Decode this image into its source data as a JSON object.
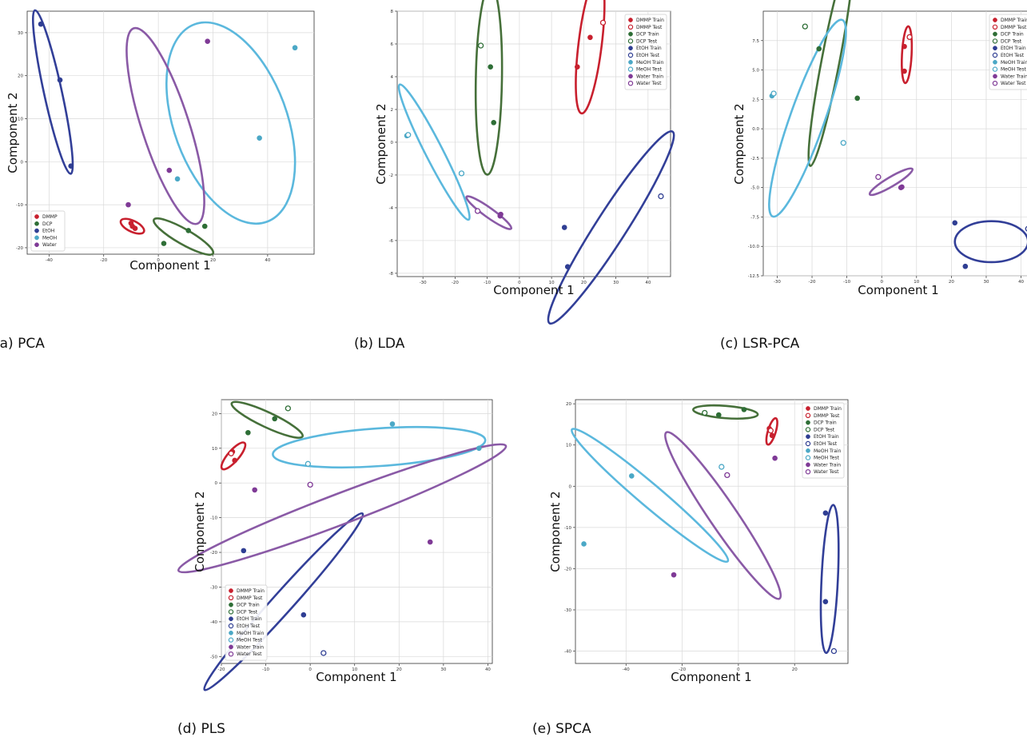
{
  "colors": {
    "DMMP": "#c8202e",
    "DCP": "#2e6e36",
    "EtOH": "#2f3e93",
    "MeOH": "#4ba8c6",
    "Water": "#7f3a96",
    "DMMP_ellipse": "#c8202e",
    "DCP_ellipse": "#46703a",
    "EtOH_ellipse": "#323f98",
    "MeOH_ellipse": "#5bb8dd",
    "Water_ellipse": "#8a5aa6"
  },
  "chart_data": [
    {
      "id": "pca",
      "type": "scatter",
      "caption": "(a) PCA",
      "xlabel": "Component 1",
      "ylabel": "Component 2",
      "xlim": [
        -48,
        57
      ],
      "ylim": [
        -21.5,
        35
      ],
      "xticks": [
        -40,
        -20,
        0,
        20,
        40
      ],
      "yticks": [
        -20,
        -10,
        0,
        10,
        20,
        30
      ],
      "grid": true,
      "legend": {
        "placement": "lower-left",
        "style": "filled",
        "entries": [
          "DMMP",
          "DCP",
          "EtOH",
          "MeOH",
          "Water"
        ]
      },
      "points": [
        {
          "cls": "DMMP",
          "x": -10,
          "y": -14.3,
          "t": "f"
        },
        {
          "cls": "DMMP",
          "x": -9.5,
          "y": -15,
          "t": "f"
        },
        {
          "cls": "DMMP",
          "x": -8.5,
          "y": -15.5,
          "t": "f"
        },
        {
          "cls": "DCP",
          "x": 2,
          "y": -19,
          "t": "f"
        },
        {
          "cls": "DCP",
          "x": 11,
          "y": -16,
          "t": "f"
        },
        {
          "cls": "DCP",
          "x": 17,
          "y": -15,
          "t": "f"
        },
        {
          "cls": "EtOH",
          "x": -43,
          "y": 32,
          "t": "f"
        },
        {
          "cls": "EtOH",
          "x": -36,
          "y": 19,
          "t": "f"
        },
        {
          "cls": "EtOH",
          "x": -32,
          "y": -1,
          "t": "f"
        },
        {
          "cls": "MeOH",
          "x": 50,
          "y": 26.5,
          "t": "f"
        },
        {
          "cls": "MeOH",
          "x": 37,
          "y": 5.5,
          "t": "f"
        },
        {
          "cls": "MeOH",
          "x": 7,
          "y": -4,
          "t": "f"
        },
        {
          "cls": "Water",
          "x": 18,
          "y": 28,
          "t": "f"
        },
        {
          "cls": "Water",
          "x": 4,
          "y": -2,
          "t": "f"
        },
        {
          "cls": "Water",
          "x": -11,
          "y": -10,
          "t": "f"
        }
      ],
      "ellipses": [
        {
          "cls": "DMMP",
          "cx": -9.5,
          "cy": -15,
          "rx": 4.4,
          "ry": 1.6,
          "rot": -17
        },
        {
          "cls": "DCP",
          "cx": 9.2,
          "cy": -17.4,
          "rx": 11.5,
          "ry": 2.2,
          "rot": -20
        },
        {
          "cls": "EtOH",
          "cx": -38.6,
          "cy": 16.2,
          "rx": 20.1,
          "ry": 2.6,
          "rot": -71
        },
        {
          "cls": "MeOH",
          "cx": 26.5,
          "cy": 9,
          "rx": 26.5,
          "ry": 16.5,
          "rot": -60
        },
        {
          "cls": "Water",
          "cx": 2.6,
          "cy": 8.3,
          "rx": 25.5,
          "ry": 6.9,
          "rot": -63
        }
      ]
    },
    {
      "id": "lda",
      "type": "scatter",
      "caption": "(b) LDA",
      "xlabel": "Component 1",
      "ylabel": "Component 2",
      "xlim": [
        -38,
        47
      ],
      "ylim": [
        -8.2,
        8
      ],
      "xticks": [
        -30,
        -20,
        -10,
        0,
        10,
        20,
        30,
        40
      ],
      "yticks": [
        -8,
        -6,
        -4,
        -2,
        0,
        2,
        4,
        6,
        8
      ],
      "grid": true,
      "legend": {
        "placement": "upper-right",
        "style": "train-test",
        "entries": [
          "DMMP Train",
          "DMMP Test",
          "DCP Train",
          "DCP Test",
          "EtOH Train",
          "EtOH Test",
          "MeOH Train",
          "MeOH Test",
          "Water Train",
          "Water Test"
        ]
      },
      "points": [
        {
          "cls": "DMMP",
          "x": 22,
          "y": 6.4,
          "t": "f"
        },
        {
          "cls": "DMMP",
          "x": 26,
          "y": 7.3,
          "t": "o"
        },
        {
          "cls": "DMMP",
          "x": 18,
          "y": 4.6,
          "t": "f"
        },
        {
          "cls": "DCP",
          "x": -12,
          "y": 5.9,
          "t": "o"
        },
        {
          "cls": "DCP",
          "x": -9,
          "y": 4.6,
          "t": "f"
        },
        {
          "cls": "DCP",
          "x": -8,
          "y": 1.2,
          "t": "f"
        },
        {
          "cls": "EtOH",
          "x": 44,
          "y": -3.3,
          "t": "o"
        },
        {
          "cls": "EtOH",
          "x": 14,
          "y": -5.2,
          "t": "f"
        },
        {
          "cls": "EtOH",
          "x": 15,
          "y": -7.6,
          "t": "f"
        },
        {
          "cls": "MeOH",
          "x": -35,
          "y": 0.4,
          "t": "f"
        },
        {
          "cls": "MeOH",
          "x": -34.6,
          "y": 0.45,
          "t": "o"
        },
        {
          "cls": "MeOH",
          "x": -18,
          "y": -1.9,
          "t": "o"
        },
        {
          "cls": "Water",
          "x": -13,
          "y": -4.2,
          "t": "o"
        },
        {
          "cls": "Water",
          "x": -6,
          "y": -4.5,
          "t": "f"
        },
        {
          "cls": "Water",
          "x": -5.8,
          "y": -4.4,
          "t": "f"
        }
      ],
      "ellipses": [
        {
          "cls": "DMMP",
          "cx": 22,
          "cy": 6.0,
          "rx": 5,
          "ry": 1.6,
          "rot": 58
        },
        {
          "cls": "DCP",
          "cx": -9.5,
          "cy": 3.8,
          "rx": 5.8,
          "ry": 1.8,
          "rot": 85
        },
        {
          "cls": "EtOH",
          "cx": 28.5,
          "cy": -5.2,
          "rx": 20,
          "ry": 2.1,
          "rot": 17
        },
        {
          "cls": "MeOH",
          "cx": -26.5,
          "cy": -0.6,
          "rx": 11.5,
          "ry": 1.2,
          "rot": -21
        },
        {
          "cls": "Water",
          "cx": -9.5,
          "cy": -4.3,
          "rx": 7.0,
          "ry": 0.65,
          "rot": -8
        }
      ]
    },
    {
      "id": "lsr-pca",
      "type": "scatter",
      "caption": "(c) LSR-PCA",
      "xlabel": "Component 1",
      "ylabel": "Component 2",
      "xlim": [
        -34,
        44
      ],
      "ylim": [
        -12.5,
        10
      ],
      "xticks": [
        -30,
        -20,
        -10,
        0,
        10,
        20,
        30,
        40
      ],
      "yticks": [
        -12.5,
        -10.0,
        -7.5,
        -5.0,
        -2.5,
        0.0,
        2.5,
        5.0,
        7.5
      ],
      "tick_decimals": 1,
      "grid": true,
      "legend": {
        "placement": "upper-right",
        "style": "train-test",
        "entries": [
          "DMMP Train",
          "DMMP Test",
          "DCP Train",
          "DCP Test",
          "EtOH Train",
          "EtOH Test",
          "MeOH Train",
          "MeOH Test",
          "Water Train",
          "Water Test"
        ]
      },
      "points": [
        {
          "cls": "DMMP",
          "x": 8,
          "y": 7.8,
          "t": "o"
        },
        {
          "cls": "DMMP",
          "x": 6.5,
          "y": 7.0,
          "t": "f"
        },
        {
          "cls": "DMMP",
          "x": 6.5,
          "y": 4.9,
          "t": "f"
        },
        {
          "cls": "DCP",
          "x": -22,
          "y": 8.7,
          "t": "o"
        },
        {
          "cls": "DCP",
          "x": -18,
          "y": 6.8,
          "t": "f"
        },
        {
          "cls": "DCP",
          "x": -7,
          "y": 2.6,
          "t": "f"
        },
        {
          "cls": "EtOH",
          "x": 42,
          "y": -8.5,
          "t": "o"
        },
        {
          "cls": "EtOH",
          "x": 21,
          "y": -8.0,
          "t": "f"
        },
        {
          "cls": "EtOH",
          "x": 24,
          "y": -11.7,
          "t": "f"
        },
        {
          "cls": "MeOH",
          "x": -31.5,
          "y": 2.8,
          "t": "f"
        },
        {
          "cls": "MeOH",
          "x": -31,
          "y": 3.0,
          "t": "o"
        },
        {
          "cls": "MeOH",
          "x": -11,
          "y": -1.2,
          "t": "o"
        },
        {
          "cls": "Water",
          "x": -1,
          "y": -4.1,
          "t": "o"
        },
        {
          "cls": "Water",
          "x": 5.5,
          "y": -5.0,
          "t": "f"
        },
        {
          "cls": "Water",
          "x": 5.8,
          "y": -4.95,
          "t": "f"
        }
      ],
      "ellipses": [
        {
          "cls": "DMMP",
          "cx": 7.2,
          "cy": 6.3,
          "rx": 2.45,
          "ry": 0.75,
          "rot": 80
        },
        {
          "cls": "DCP",
          "cx": -14.6,
          "cy": 5.9,
          "rx": 10.8,
          "ry": 1.4,
          "rot": 57
        },
        {
          "cls": "EtOH",
          "cx": 31.5,
          "cy": -9.6,
          "rx": 10.5,
          "ry": 3.2,
          "rot": 0
        },
        {
          "cls": "MeOH",
          "cx": -21.3,
          "cy": 0.9,
          "rx": 13,
          "ry": 2.7,
          "rot": 40
        },
        {
          "cls": "Water",
          "cx": 2.7,
          "cy": -4.5,
          "rx": 6.2,
          "ry": 0.72,
          "rot": 10
        }
      ]
    },
    {
      "id": "pls",
      "type": "scatter",
      "caption": "(d) PLS",
      "xlabel": "Component 1",
      "ylabel": "Component 2",
      "xlim": [
        -20,
        41
      ],
      "ylim": [
        -52,
        24
      ],
      "xticks": [
        -20,
        -10,
        0,
        10,
        20,
        30,
        40
      ],
      "yticks": [
        -50,
        -40,
        -30,
        -20,
        -10,
        0,
        10,
        20
      ],
      "grid": true,
      "legend": {
        "placement": "lower-left",
        "style": "train-test",
        "entries": [
          "DMMP Train",
          "DMMP Test",
          "DCP Train",
          "DCP Test",
          "EtOH Train",
          "EtOH Test",
          "MeOH Train",
          "MeOH Test",
          "Water Train",
          "Water Test"
        ]
      },
      "points": [
        {
          "cls": "DMMP",
          "x": -17.5,
          "y": 9,
          "t": "f"
        },
        {
          "cls": "DMMP",
          "x": -17.8,
          "y": 8.5,
          "t": "o"
        },
        {
          "cls": "DMMP",
          "x": -17,
          "y": 6.5,
          "t": "f"
        },
        {
          "cls": "DCP",
          "x": -5,
          "y": 21.5,
          "t": "o"
        },
        {
          "cls": "DCP",
          "x": -8,
          "y": 18.5,
          "t": "f"
        },
        {
          "cls": "DCP",
          "x": -14,
          "y": 14.5,
          "t": "f"
        },
        {
          "cls": "EtOH",
          "x": -15,
          "y": -19.5,
          "t": "f"
        },
        {
          "cls": "EtOH",
          "x": -1.5,
          "y": -38,
          "t": "f"
        },
        {
          "cls": "EtOH",
          "x": 3,
          "y": -49,
          "t": "o"
        },
        {
          "cls": "MeOH",
          "x": 18.5,
          "y": 17,
          "t": "f"
        },
        {
          "cls": "MeOH",
          "x": 38,
          "y": 10,
          "t": "f"
        },
        {
          "cls": "MeOH",
          "x": -0.5,
          "y": 5.5,
          "t": "o"
        },
        {
          "cls": "Water",
          "x": -12.5,
          "y": -2,
          "t": "f"
        },
        {
          "cls": "Water",
          "x": 0,
          "y": -0.5,
          "t": "o"
        },
        {
          "cls": "Water",
          "x": 27,
          "y": -17,
          "t": "f"
        }
      ],
      "ellipses": [
        {
          "cls": "DMMP",
          "cx": -17.3,
          "cy": 7.8,
          "rx": 4.5,
          "ry": 1.4,
          "rot": 56
        },
        {
          "cls": "DCP",
          "cx": -9.7,
          "cy": 18.2,
          "rx": 9.3,
          "ry": 1.9,
          "rot": -31
        },
        {
          "cls": "EtOH",
          "cx": -6,
          "cy": -34.2,
          "rx": 31,
          "ry": 2.6,
          "rot": 55
        },
        {
          "cls": "MeOH",
          "cx": 15.5,
          "cy": 10.3,
          "rx": 24,
          "ry": 4.8,
          "rot": 5
        },
        {
          "cls": "Water",
          "cx": 7.2,
          "cy": -7.3,
          "rx": 41,
          "ry": 3.9,
          "rot": 26
        }
      ]
    },
    {
      "id": "spca",
      "type": "scatter",
      "caption": "(e) SPCA",
      "xlabel": "Component 1",
      "ylabel": "Component 2",
      "xlim": [
        -58,
        39
      ],
      "ylim": [
        -43,
        21
      ],
      "xticks": [
        -40,
        -20,
        0,
        20
      ],
      "yticks": [
        -40,
        -30,
        -20,
        -10,
        0,
        10,
        20
      ],
      "grid": true,
      "legend": {
        "placement": "upper-right",
        "style": "train-test",
        "entries": [
          "DMMP Train",
          "DMMP Test",
          "DCP Train",
          "DCP Test",
          "EtOH Train",
          "EtOH Test",
          "MeOH Train",
          "MeOH Test",
          "Water Train",
          "Water Test"
        ]
      },
      "points": [
        {
          "cls": "DMMP",
          "x": 11,
          "y": 14,
          "t": "f"
        },
        {
          "cls": "DMMP",
          "x": 11.5,
          "y": 13.5,
          "t": "o"
        },
        {
          "cls": "DMMP",
          "x": 12,
          "y": 12.3,
          "t": "f"
        },
        {
          "cls": "DCP",
          "x": -12,
          "y": 17.8,
          "t": "o"
        },
        {
          "cls": "DCP",
          "x": -7,
          "y": 17.3,
          "t": "f"
        },
        {
          "cls": "DCP",
          "x": 2,
          "y": 18.6,
          "t": "f"
        },
        {
          "cls": "EtOH",
          "x": 31,
          "y": -6.5,
          "t": "f"
        },
        {
          "cls": "EtOH",
          "x": 31,
          "y": -28,
          "t": "f"
        },
        {
          "cls": "EtOH",
          "x": 34,
          "y": -40,
          "t": "o"
        },
        {
          "cls": "MeOH",
          "x": -38,
          "y": 2.5,
          "t": "f"
        },
        {
          "cls": "MeOH",
          "x": -55,
          "y": -14,
          "t": "f"
        },
        {
          "cls": "MeOH",
          "x": -6,
          "y": 4.7,
          "t": "o"
        },
        {
          "cls": "Water",
          "x": 13,
          "y": 6.8,
          "t": "f"
        },
        {
          "cls": "Water",
          "x": -4,
          "y": 2.7,
          "t": "o"
        },
        {
          "cls": "Water",
          "x": -23,
          "y": -21.5,
          "t": "f"
        }
      ],
      "ellipses": [
        {
          "cls": "DMMP",
          "cx": 11.9,
          "cy": 13.3,
          "rx": 3.5,
          "ry": 1.15,
          "rot": 66
        },
        {
          "cls": "DCP",
          "cx": -4.6,
          "cy": 18.0,
          "rx": 11.5,
          "ry": 1.8,
          "rot": -3
        },
        {
          "cls": "EtOH",
          "cx": 32.5,
          "cy": -22.5,
          "rx": 18,
          "ry": 2.4,
          "rot": 86
        },
        {
          "cls": "MeOH",
          "cx": -31.5,
          "cy": -2.2,
          "rx": 32,
          "ry": 3.3,
          "rot": -30
        },
        {
          "cls": "Water",
          "cx": -5.5,
          "cy": -7.1,
          "rx": 28.5,
          "ry": 4.0,
          "rot": -45
        }
      ]
    }
  ]
}
